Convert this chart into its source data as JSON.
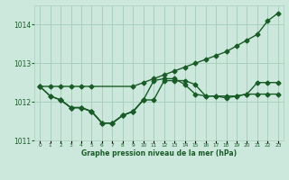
{
  "background_color": "#cce8dc",
  "grid_color": "#aacfbf",
  "line_color": "#1a5c28",
  "text_color": "#1a5c28",
  "xlabel": "Graphe pression niveau de la mer (hPa)",
  "ylim": [
    1011.0,
    1014.5
  ],
  "yticks": [
    1011,
    1012,
    1013,
    1014
  ],
  "xlim": [
    -0.5,
    23.5
  ],
  "xticks": [
    0,
    1,
    2,
    3,
    4,
    5,
    6,
    7,
    8,
    9,
    10,
    11,
    12,
    13,
    14,
    15,
    16,
    17,
    18,
    19,
    20,
    21,
    22,
    23
  ],
  "series": [
    {
      "x": [
        0,
        1,
        2,
        3,
        4,
        5,
        9,
        10,
        11,
        12,
        13,
        14,
        15,
        16,
        17,
        18,
        19,
        20,
        21,
        22,
        23
      ],
      "y": [
        1012.4,
        1012.4,
        1012.4,
        1012.4,
        1012.4,
        1012.4,
        1012.4,
        1012.5,
        1012.6,
        1012.7,
        1012.8,
        1012.9,
        1013.0,
        1013.1,
        1013.2,
        1013.3,
        1013.45,
        1013.6,
        1013.75,
        1014.1,
        1014.3
      ],
      "marker": "D",
      "markersize": 2.5,
      "linewidth": 1.0
    },
    {
      "x": [
        0,
        1,
        2,
        3,
        4,
        5,
        6,
        7,
        8,
        9,
        10,
        11,
        12,
        13,
        14,
        15,
        16,
        17,
        18,
        19,
        20,
        21,
        22,
        23
      ],
      "y": [
        1012.4,
        1012.15,
        1012.05,
        1011.85,
        1011.85,
        1011.75,
        1011.45,
        1011.45,
        1011.65,
        1011.75,
        1012.05,
        1012.55,
        1012.6,
        1012.6,
        1012.45,
        1012.2,
        1012.15,
        1012.15,
        1012.1,
        1012.15,
        1012.2,
        1012.5,
        1012.5,
        1012.5
      ],
      "marker": "D",
      "markersize": 2.5,
      "linewidth": 1.0
    },
    {
      "x": [
        0,
        1,
        2,
        3,
        4,
        5,
        6,
        7,
        8,
        9,
        10,
        11,
        12,
        13,
        14,
        15,
        16,
        17,
        18,
        19,
        20,
        21,
        22,
        23
      ],
      "y": [
        1012.4,
        1012.15,
        1012.05,
        1011.85,
        1011.85,
        1011.75,
        1011.45,
        1011.45,
        1011.65,
        1011.75,
        1012.05,
        1012.05,
        1012.55,
        1012.55,
        1012.55,
        1012.45,
        1012.15,
        1012.15,
        1012.15,
        1012.15,
        1012.2,
        1012.2,
        1012.2,
        1012.2
      ],
      "marker": "D",
      "markersize": 2.5,
      "linewidth": 1.0
    },
    {
      "x": [
        2,
        3,
        4,
        5,
        6,
        7,
        8,
        9,
        10
      ],
      "y": [
        1012.05,
        1011.85,
        1011.85,
        1011.75,
        1011.45,
        1011.45,
        1011.65,
        1011.75,
        1012.05
      ],
      "marker": "D",
      "markersize": 2.5,
      "linewidth": 1.0
    }
  ]
}
